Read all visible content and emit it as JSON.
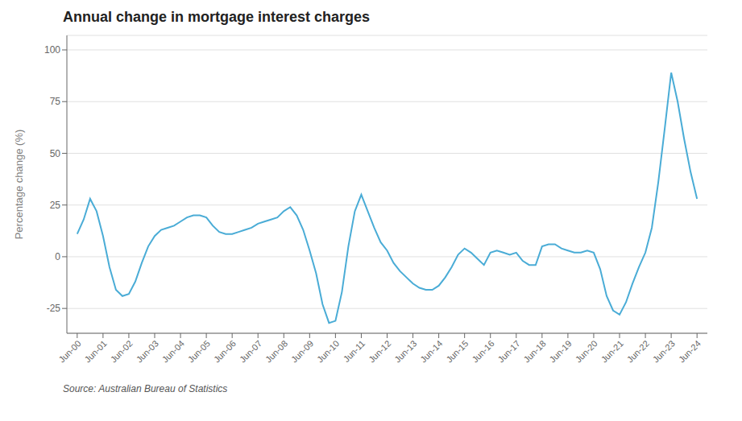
{
  "chart_data": {
    "type": "line",
    "title": "Annual change in mortgage interest charges",
    "y_label": "Percentage change (%)",
    "annotations": [
      "Source: Australian Bureau of Statistics"
    ],
    "color": "#4aacd6",
    "grid": true,
    "xlim": [
      1999.6,
      2024.4
    ],
    "xticks": [
      {
        "value": 2000,
        "label": "Jun-00"
      },
      {
        "value": 2001,
        "label": "Jun-01"
      },
      {
        "value": 2002,
        "label": "Jun-02"
      },
      {
        "value": 2003,
        "label": "Jun-03"
      },
      {
        "value": 2004,
        "label": "Jun-04"
      },
      {
        "value": 2005,
        "label": "Jun-05"
      },
      {
        "value": 2006,
        "label": "Jun-06"
      },
      {
        "value": 2007,
        "label": "Jun-07"
      },
      {
        "value": 2008,
        "label": "Jun-08"
      },
      {
        "value": 2009,
        "label": "Jun-09"
      },
      {
        "value": 2010,
        "label": "Jun-10"
      },
      {
        "value": 2011,
        "label": "Jun-11"
      },
      {
        "value": 2012,
        "label": "Jun-12"
      },
      {
        "value": 2013,
        "label": "Jun-13"
      },
      {
        "value": 2014,
        "label": "Jun-14"
      },
      {
        "value": 2015,
        "label": "Jun-15"
      },
      {
        "value": 2016,
        "label": "Jun-16"
      },
      {
        "value": 2017,
        "label": "Jun-17"
      },
      {
        "value": 2018,
        "label": "Jun-18"
      },
      {
        "value": 2019,
        "label": "Jun-19"
      },
      {
        "value": 2020,
        "label": "Jun-20"
      },
      {
        "value": 2021,
        "label": "Jun-21"
      },
      {
        "value": 2022,
        "label": "Jun-22"
      },
      {
        "value": 2023,
        "label": "Jun-23"
      },
      {
        "value": 2024,
        "label": "Jun-24"
      }
    ],
    "ylim": [
      -37,
      107
    ],
    "yticks": [
      -25,
      0,
      25,
      50,
      75,
      100
    ],
    "x": [
      2000.0,
      2000.25,
      2000.5,
      2000.75,
      2001.0,
      2001.25,
      2001.5,
      2001.75,
      2002.0,
      2002.25,
      2002.5,
      2002.75,
      2003.0,
      2003.25,
      2003.5,
      2003.75,
      2004.0,
      2004.25,
      2004.5,
      2004.75,
      2005.0,
      2005.25,
      2005.5,
      2005.75,
      2006.0,
      2006.25,
      2006.5,
      2006.75,
      2007.0,
      2007.25,
      2007.5,
      2007.75,
      2008.0,
      2008.25,
      2008.5,
      2008.75,
      2009.0,
      2009.25,
      2009.5,
      2009.75,
      2010.0,
      2010.25,
      2010.5,
      2010.75,
      2011.0,
      2011.25,
      2011.5,
      2011.75,
      2012.0,
      2012.25,
      2012.5,
      2012.75,
      2013.0,
      2013.25,
      2013.5,
      2013.75,
      2014.0,
      2014.25,
      2014.5,
      2014.75,
      2015.0,
      2015.25,
      2015.5,
      2015.75,
      2016.0,
      2016.25,
      2016.5,
      2016.75,
      2017.0,
      2017.25,
      2017.5,
      2017.75,
      2018.0,
      2018.25,
      2018.5,
      2018.75,
      2019.0,
      2019.25,
      2019.5,
      2019.75,
      2020.0,
      2020.25,
      2020.5,
      2020.75,
      2021.0,
      2021.25,
      2021.5,
      2021.75,
      2022.0,
      2022.25,
      2022.5,
      2022.75,
      2023.0,
      2023.25,
      2023.5,
      2023.75,
      2024.0
    ],
    "values": [
      11,
      18,
      28,
      22,
      10,
      -5,
      -16,
      -19,
      -18,
      -12,
      -3,
      5,
      10,
      13,
      14,
      15,
      17,
      19,
      20,
      20,
      19,
      15,
      12,
      11,
      11,
      12,
      13,
      14,
      16,
      17,
      18,
      19,
      22,
      24,
      20,
      13,
      3,
      -8,
      -23,
      -32,
      -31,
      -17,
      5,
      22,
      30,
      22,
      14,
      7,
      3,
      -3,
      -7,
      -10,
      -13,
      -15,
      -16,
      -16,
      -14,
      -10,
      -5,
      1,
      4,
      2,
      -1,
      -4,
      2,
      3,
      2,
      1,
      2,
      -2,
      -4,
      -4,
      5,
      6,
      6,
      4,
      3,
      2,
      2,
      3,
      2,
      -6,
      -19,
      -26,
      -28,
      -22,
      -13,
      -5,
      2,
      14,
      36,
      62,
      89,
      75,
      57,
      41,
      28
    ]
  }
}
